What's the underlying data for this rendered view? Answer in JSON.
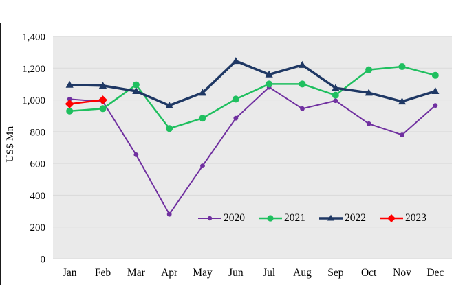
{
  "page": {
    "background": "#ffffff",
    "left_border_color": "#1a1a1a"
  },
  "chart_data": {
    "type": "line",
    "title": "",
    "xlabel": "",
    "ylabel": "US$ Mn",
    "ylim": [
      0,
      1400
    ],
    "ytick_step": 200,
    "grid": true,
    "plot_bg": "#EAEAEA",
    "grid_color": "#D9D9D9",
    "legend_position": "inside-bottom",
    "categories": [
      "Jan",
      "Feb",
      "Mar",
      "Apr",
      "May",
      "Jun",
      "Jul",
      "Aug",
      "Sep",
      "Oct",
      "Nov",
      "Dec"
    ],
    "y_ticks": [
      "0",
      "200",
      "400",
      "600",
      "800",
      "1,000",
      "1,200",
      "1,400"
    ],
    "series": [
      {
        "name": "2020",
        "color": "#7030A0",
        "marker": "circle-small",
        "values": [
          1005,
          990,
          655,
          280,
          585,
          885,
          1080,
          945,
          995,
          850,
          780,
          965
        ]
      },
      {
        "name": "2021",
        "color": "#1FBF5F",
        "marker": "circle",
        "values": [
          930,
          945,
          1095,
          820,
          885,
          1005,
          1100,
          1100,
          1030,
          1190,
          1210,
          1155
        ]
      },
      {
        "name": "2022",
        "color": "#1F3864",
        "marker": "triangle",
        "values": [
          1095,
          1090,
          1055,
          965,
          1045,
          1245,
          1160,
          1220,
          1075,
          1045,
          990,
          1055
        ]
      },
      {
        "name": "2023",
        "color": "#FF0000",
        "marker": "diamond",
        "values": [
          975,
          1000
        ]
      }
    ]
  }
}
